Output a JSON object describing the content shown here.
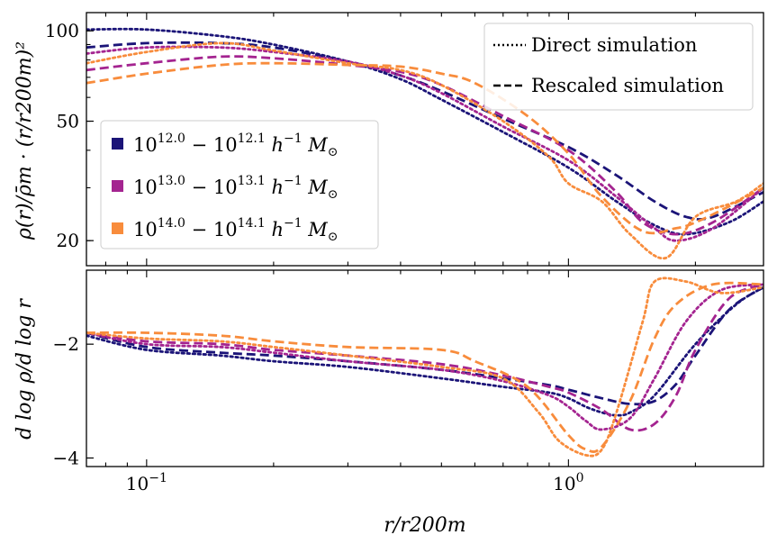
{
  "chart_data": [
    {
      "panel": "top",
      "type": "line",
      "ylabel": "ρ(r)/ρ̄m · (r/r200m)²",
      "yscale": "log",
      "xscale": "log",
      "xlim": [
        0.072,
        2.9
      ],
      "ylim": [
        16.5,
        115
      ],
      "yticks": [
        20,
        50,
        100
      ],
      "ytick_labels": [
        "20",
        "50",
        "100"
      ],
      "series": [
        {
          "name": "10^12.0 − 10^12.1 h⁻¹ M☉",
          "method": "Direct simulation",
          "color": "#1b1478",
          "x": [
            0.072,
            0.1,
            0.15,
            0.2,
            0.3,
            0.4,
            0.5,
            0.7,
            1.0,
            1.3,
            1.6,
            1.9,
            2.4,
            2.9
          ],
          "y": [
            101,
            101,
            96,
            90,
            79,
            69,
            59,
            46,
            35,
            27,
            22.5,
            21,
            23,
            27
          ]
        },
        {
          "name": "10^12.0 − 10^12.1 h⁻¹ M☉",
          "method": "Rescaled simulation",
          "color": "#1b1478",
          "x": [
            0.072,
            0.1,
            0.15,
            0.2,
            0.3,
            0.4,
            0.5,
            0.7,
            1.0,
            1.3,
            1.6,
            1.9,
            2.2,
            2.9
          ],
          "y": [
            88,
            91,
            91,
            88,
            79,
            71,
            63,
            51,
            41,
            33,
            27,
            24,
            24,
            29
          ]
        },
        {
          "name": "10^13.0 − 10^13.1 h⁻¹ M☉",
          "method": "Direct simulation",
          "color": "#a42490",
          "x": [
            0.072,
            0.1,
            0.15,
            0.2,
            0.3,
            0.4,
            0.5,
            0.7,
            1.0,
            1.3,
            1.6,
            1.8,
            2.2,
            2.9
          ],
          "y": [
            84,
            88,
            88,
            85,
            79,
            71,
            62,
            48,
            37,
            28,
            22,
            20,
            22,
            30
          ]
        },
        {
          "name": "10^13.0 − 10^13.1 h⁻¹ M☉",
          "method": "Rescaled simulation",
          "color": "#a42490",
          "x": [
            0.072,
            0.1,
            0.15,
            0.2,
            0.3,
            0.4,
            0.5,
            0.7,
            1.0,
            1.3,
            1.5,
            1.8,
            2.2,
            2.9
          ],
          "y": [
            74,
            78,
            82,
            81,
            77,
            73,
            66,
            52,
            40,
            29,
            23,
            21,
            23,
            30
          ]
        },
        {
          "name": "10^14.0 − 10^14.1 h⁻¹ M☉",
          "method": "Direct simulation",
          "color": "#f88c3c",
          "x": [
            0.072,
            0.1,
            0.15,
            0.2,
            0.3,
            0.4,
            0.5,
            0.7,
            0.9,
            1.0,
            1.2,
            1.4,
            1.7,
            2.0,
            2.5,
            2.9
          ],
          "y": [
            78,
            85,
            91,
            86,
            78,
            74,
            66,
            50,
            38,
            31,
            27,
            21,
            17.5,
            24,
            27,
            31
          ]
        },
        {
          "name": "10^14.0 − 10^14.1 h⁻¹ M☉",
          "method": "Rescaled simulation",
          "color": "#f88c3c",
          "x": [
            0.072,
            0.1,
            0.15,
            0.2,
            0.3,
            0.4,
            0.5,
            0.6,
            0.8,
            1.0,
            1.2,
            1.5,
            1.8,
            2.0,
            2.4,
            2.9
          ],
          "y": [
            67,
            72,
            77,
            78,
            77,
            76,
            72,
            67,
            52,
            39,
            28,
            21.5,
            22,
            23,
            26,
            30
          ]
        }
      ],
      "legend_methods": {
        "placement": "top-right",
        "entries": [
          "Direct simulation",
          "Rescaled simulation"
        ]
      },
      "legend_mass": {
        "placement": "center-left",
        "entries": [
          {
            "base": "10",
            "exp1": "12.0",
            "sep": " − ",
            "exp2": "12.1",
            "unit": "h",
            "uexp": "−1",
            "msym": "M",
            "sub": "⊙",
            "color": "#1b1478"
          },
          {
            "base": "10",
            "exp1": "13.0",
            "sep": " − ",
            "exp2": "13.1",
            "unit": "h",
            "uexp": "−1",
            "msym": "M",
            "sub": "⊙",
            "color": "#a42490"
          },
          {
            "base": "10",
            "exp1": "14.0",
            "sep": " − ",
            "exp2": "14.1",
            "unit": "h",
            "uexp": "−1",
            "msym": "M",
            "sub": "⊙",
            "color": "#f88c3c"
          }
        ]
      }
    },
    {
      "panel": "bottom",
      "type": "line",
      "ylabel": "d log ρ/d log r",
      "xlabel": "r/r200m",
      "xscale": "log",
      "xlim": [
        0.072,
        2.9
      ],
      "ylim": [
        -4.15,
        -0.7
      ],
      "yticks": [
        -2,
        -4
      ],
      "ytick_labels": [
        "−2",
        "−4"
      ],
      "xticks": [
        0.1,
        1.0
      ],
      "xtick_labels": [
        {
          "base": "10",
          "exp": "−1"
        },
        {
          "base": "10",
          "exp": "0"
        }
      ],
      "series": [
        {
          "name": "10^12.0 − 10^12.1 h⁻¹ M☉",
          "method": "Direct simulation",
          "color": "#1b1478",
          "x": [
            0.072,
            0.1,
            0.15,
            0.2,
            0.3,
            0.5,
            0.7,
            0.9,
            1.0,
            1.1,
            1.2,
            1.3,
            1.4,
            1.6,
            2.0,
            2.5,
            2.9
          ],
          "y": [
            -1.85,
            -2.1,
            -2.2,
            -2.3,
            -2.4,
            -2.6,
            -2.75,
            -2.85,
            -2.95,
            -3.1,
            -3.2,
            -3.25,
            -3.2,
            -2.9,
            -2.0,
            -1.3,
            -1.0
          ]
        },
        {
          "name": "10^12.0 − 10^12.1 h⁻¹ M☉",
          "method": "Rescaled simulation",
          "color": "#1b1478",
          "x": [
            0.072,
            0.1,
            0.15,
            0.2,
            0.3,
            0.5,
            0.7,
            0.9,
            1.0,
            1.2,
            1.4,
            1.6,
            1.8,
            2.0,
            2.4,
            2.9
          ],
          "y": [
            -1.8,
            -2.05,
            -2.15,
            -2.2,
            -2.3,
            -2.45,
            -2.6,
            -2.72,
            -2.8,
            -2.95,
            -3.05,
            -3.0,
            -2.7,
            -2.2,
            -1.4,
            -1.0
          ]
        },
        {
          "name": "10^13.0 − 10^13.1 h⁻¹ M☉",
          "method": "Direct simulation",
          "color": "#a42490",
          "x": [
            0.072,
            0.1,
            0.15,
            0.2,
            0.3,
            0.5,
            0.7,
            0.9,
            1.0,
            1.1,
            1.2,
            1.4,
            1.6,
            1.9,
            2.3,
            2.9
          ],
          "y": [
            -1.8,
            -2.0,
            -2.05,
            -2.15,
            -2.3,
            -2.45,
            -2.65,
            -2.9,
            -3.1,
            -3.35,
            -3.5,
            -3.3,
            -2.6,
            -1.6,
            -1.05,
            -0.95
          ]
        },
        {
          "name": "10^13.0 − 10^13.1 h⁻¹ M☉",
          "method": "Rescaled simulation",
          "color": "#a42490",
          "x": [
            0.072,
            0.1,
            0.15,
            0.2,
            0.3,
            0.5,
            0.7,
            0.9,
            1.0,
            1.2,
            1.4,
            1.6,
            1.8,
            2.0,
            2.4,
            2.9
          ],
          "y": [
            -1.8,
            -1.95,
            -2.0,
            -2.1,
            -2.2,
            -2.35,
            -2.55,
            -2.75,
            -2.85,
            -3.15,
            -3.5,
            -3.4,
            -2.9,
            -2.1,
            -1.2,
            -0.95
          ]
        },
        {
          "name": "10^14.0 − 10^14.1 h⁻¹ M☉",
          "method": "Direct simulation",
          "color": "#f88c3c",
          "x": [
            0.072,
            0.1,
            0.15,
            0.2,
            0.3,
            0.5,
            0.7,
            0.85,
            0.95,
            1.1,
            1.2,
            1.3,
            1.5,
            1.6,
            1.9,
            2.3,
            2.9
          ],
          "y": [
            -1.8,
            -1.9,
            -1.95,
            -2.05,
            -2.2,
            -2.4,
            -2.6,
            -3.2,
            -3.7,
            -3.95,
            -3.85,
            -3.2,
            -1.6,
            -0.9,
            -0.9,
            -1.1,
            -1.0
          ]
        },
        {
          "name": "10^14.0 − 10^14.1 h⁻¹ M☉",
          "method": "Rescaled simulation",
          "color": "#f88c3c",
          "x": [
            0.072,
            0.1,
            0.15,
            0.2,
            0.3,
            0.5,
            0.6,
            0.8,
            1.0,
            1.1,
            1.2,
            1.4,
            1.6,
            1.8,
            2.2,
            2.9
          ],
          "y": [
            -1.8,
            -1.8,
            -1.85,
            -1.95,
            -2.05,
            -2.1,
            -2.3,
            -2.75,
            -3.6,
            -3.85,
            -3.8,
            -3.0,
            -1.9,
            -1.3,
            -0.95,
            -0.95
          ]
        }
      ]
    }
  ]
}
